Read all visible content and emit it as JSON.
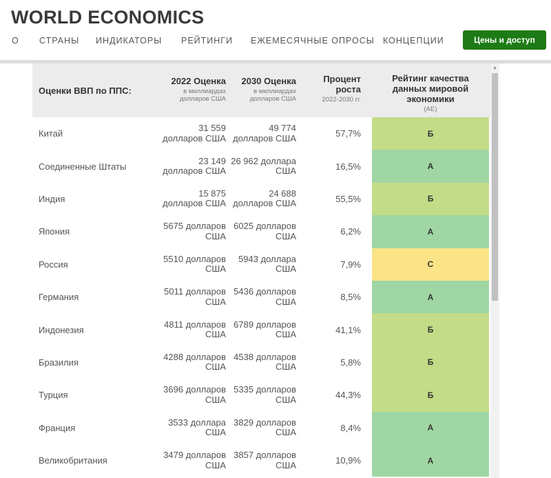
{
  "brand": {
    "logo_text": "WORLD ECONOMICS"
  },
  "nav": {
    "items": [
      "О",
      "СТРАНЫ",
      "ИНДИКАТОРЫ",
      "РЕЙТИНГИ",
      "ЕЖЕМЕСЯЧНЫЕ ОПРОСЫ",
      "КОНЦЕПЦИИ"
    ],
    "cta_label": "Цены и доступ"
  },
  "table": {
    "headers": {
      "country": "Оценки ВВП по ППС:",
      "est2022_title": "2022 Оценка",
      "est2022_sub": "в миллиардах долларов США",
      "est2030_title": "2030 Оценка",
      "est2030_sub": "в миллиардах долларов США",
      "growth_title": "Процент роста",
      "growth_sub": "2022-2030 гг.",
      "rating_title": "Рейтинг качества данных мировой экономики",
      "rating_sub": "(AE)"
    },
    "rows": [
      {
        "country": "Китай",
        "est2022": "31 559 долларов США",
        "est2030": "49 774 долларов США",
        "growth": "57,7%",
        "rating": "Б"
      },
      {
        "country": "Соединенные Штаты",
        "est2022": "23 149 долларов США",
        "est2030": "26 962 доллара США",
        "growth": "16,5%",
        "rating": "А"
      },
      {
        "country": "Индия",
        "est2022": "15 875 долларов США",
        "est2030": "24 688 долларов США",
        "growth": "55,5%",
        "rating": "Б"
      },
      {
        "country": "Япония",
        "est2022": "5675 долларов США",
        "est2030": "6025 долларов США",
        "growth": "6,2%",
        "rating": "А"
      },
      {
        "country": "Россия",
        "est2022": "5510 долларов США",
        "est2030": "5943 доллара США",
        "growth": "7,9%",
        "rating": "С"
      },
      {
        "country": "Германия",
        "est2022": "5011 долларов США",
        "est2030": "5436 долларов США",
        "growth": "8,5%",
        "rating": "А"
      },
      {
        "country": "Индонезия",
        "est2022": "4811 долларов США",
        "est2030": "6789 долларов США",
        "growth": "41,1%",
        "rating": "Б"
      },
      {
        "country": "Бразилия",
        "est2022": "4288 долларов США",
        "est2030": "4538 долларов США",
        "growth": "5,8%",
        "rating": "Б"
      },
      {
        "country": "Турция",
        "est2022": "3696 долларов США",
        "est2030": "5335 долларов США",
        "growth": "44,3%",
        "rating": "Б"
      },
      {
        "country": "Франция",
        "est2022": "3533 доллара США",
        "est2030": "3829 долларов США",
        "growth": "8,4%",
        "rating": "А"
      },
      {
        "country": "Великобритания",
        "est2022": "3479 долларов США",
        "est2030": "3857 долларов США",
        "growth": "10,9%",
        "rating": "А"
      }
    ]
  },
  "colors": {
    "cta_green": "#1d7b15",
    "header_bg": "#ececec",
    "rating_A": "#9fd6a3",
    "rating_B": "#c3dc88",
    "rating_C": "#fae487"
  }
}
